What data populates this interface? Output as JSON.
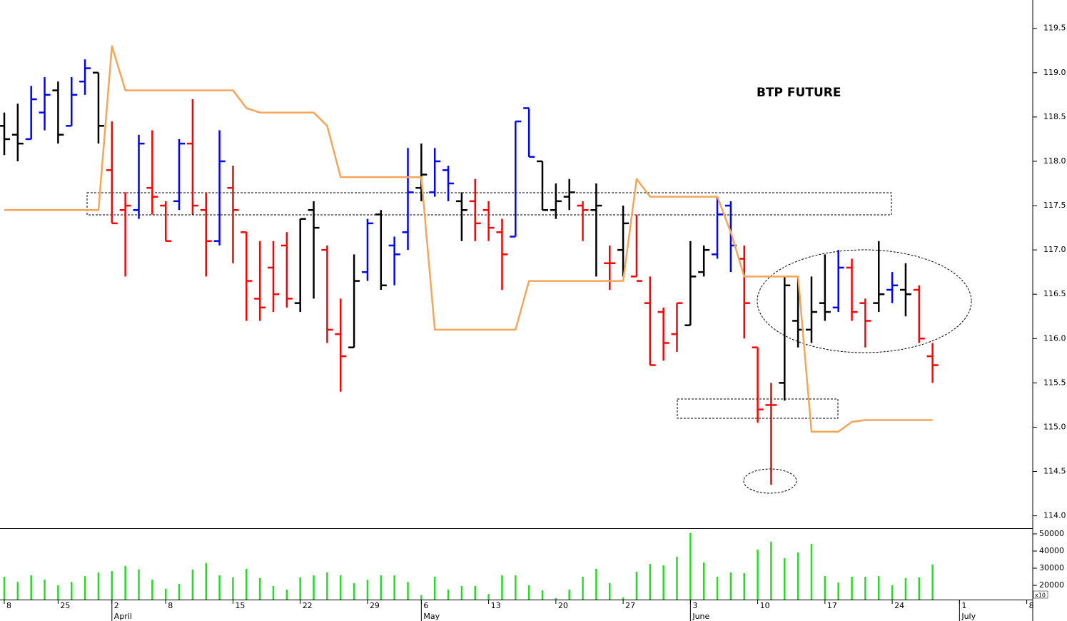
{
  "chart_data": {
    "type": "ohlc",
    "title": "BTP FUTURE",
    "categories": [
      "8",
      null,
      null,
      null,
      "25",
      null,
      null,
      null,
      "2",
      null,
      null,
      null,
      "8",
      null,
      null,
      null,
      null,
      "15",
      null,
      null,
      null,
      null,
      "22",
      null,
      null,
      null,
      null,
      "29",
      null,
      null,
      null,
      "6",
      null,
      null,
      null,
      null,
      "13",
      null,
      null,
      null,
      null,
      "20",
      null,
      null,
      null,
      null,
      "27",
      null,
      null,
      null,
      null,
      "3",
      null,
      null,
      null,
      null,
      "10",
      null,
      null,
      null,
      null,
      "17",
      null,
      null,
      null,
      null,
      "24",
      null,
      null,
      null,
      null,
      "1",
      null,
      null,
      null,
      null,
      "8"
    ],
    "months": [
      null,
      null,
      null,
      null,
      null,
      null,
      null,
      null,
      "April",
      null,
      null,
      null,
      null,
      null,
      null,
      null,
      null,
      null,
      null,
      null,
      null,
      null,
      null,
      null,
      null,
      null,
      null,
      null,
      null,
      null,
      null,
      "May",
      null,
      null,
      null,
      null,
      null,
      null,
      null,
      null,
      null,
      null,
      null,
      null,
      null,
      null,
      null,
      null,
      null,
      null,
      null,
      "June",
      null,
      null,
      null,
      null,
      null,
      null,
      null,
      null,
      null,
      null,
      null,
      null,
      null,
      null,
      null,
      null,
      null,
      null,
      null,
      "July",
      null,
      null,
      null,
      null,
      null
    ],
    "open": [
      118.4,
      118.3,
      118.25,
      118.55,
      118.8,
      118.4,
      118.9,
      119.0,
      117.9,
      117.45,
      117.45,
      117.7,
      117.5,
      117.55,
      118.2,
      117.45,
      117.1,
      117.7,
      117.2,
      116.45,
      116.8,
      117.05,
      116.4,
      117.45,
      117.0,
      116.05,
      115.9,
      116.75,
      117.4,
      117.05,
      117.2,
      117.7,
      117.65,
      117.9,
      117.55,
      117.55,
      117.45,
      117.2,
      117.15,
      118.6,
      118.0,
      117.45,
      117.6,
      117.5,
      117.45,
      116.85,
      117.0,
      116.7,
      116.4,
      116.3,
      116.05,
      116.15,
      116.75,
      116.95,
      117.5,
      116.9,
      115.9,
      115.25,
      115.5,
      116.2,
      116.1,
      116.4,
      116.35,
      116.8,
      116.4,
      116.4,
      116.55,
      116.55,
      116.55,
      115.8,
      null,
      null,
      null,
      null,
      null,
      null,
      null
    ],
    "high": [
      118.55,
      118.65,
      118.85,
      118.95,
      118.9,
      118.95,
      119.15,
      119.0,
      118.45,
      117.65,
      118.3,
      118.35,
      117.55,
      118.25,
      118.7,
      117.65,
      118.35,
      117.95,
      117.2,
      117.1,
      117.1,
      117.2,
      117.35,
      117.55,
      117.05,
      116.45,
      116.95,
      117.35,
      117.45,
      117.15,
      118.15,
      118.2,
      118.15,
      117.95,
      117.65,
      117.8,
      117.55,
      117.35,
      118.45,
      118.6,
      118.0,
      117.75,
      117.8,
      117.55,
      117.75,
      117.05,
      117.5,
      117.4,
      116.7,
      116.35,
      116.4,
      117.1,
      117.05,
      117.6,
      117.55,
      117.05,
      115.9,
      115.5,
      116.7,
      116.7,
      116.7,
      116.95,
      117.0,
      116.9,
      116.45,
      117.1,
      116.75,
      116.85,
      116.6,
      115.95,
      null,
      null,
      null,
      null,
      null,
      null,
      null
    ],
    "low": [
      118.07,
      118.0,
      118.25,
      118.35,
      118.2,
      118.4,
      118.75,
      118.2,
      117.3,
      116.7,
      117.35,
      117.4,
      117.1,
      117.45,
      117.4,
      116.7,
      117.05,
      116.85,
      116.2,
      116.2,
      116.3,
      116.35,
      116.3,
      116.45,
      115.95,
      115.4,
      115.9,
      116.65,
      116.55,
      116.6,
      117.0,
      117.55,
      117.6,
      117.55,
      117.1,
      117.1,
      117.1,
      116.55,
      117.15,
      118.05,
      117.45,
      117.35,
      117.45,
      117.1,
      116.7,
      116.55,
      116.7,
      116.7,
      115.7,
      115.75,
      115.85,
      116.15,
      116.7,
      116.9,
      116.75,
      116.0,
      115.05,
      114.35,
      115.3,
      115.9,
      115.95,
      116.2,
      116.3,
      116.2,
      115.9,
      116.3,
      116.4,
      116.25,
      115.95,
      115.5,
      null,
      null,
      null,
      null,
      null,
      null,
      null
    ],
    "close": [
      118.25,
      118.2,
      118.7,
      118.75,
      118.3,
      118.75,
      119.05,
      118.4,
      117.3,
      117.5,
      118.2,
      117.6,
      117.1,
      118.2,
      117.5,
      117.1,
      118.0,
      117.45,
      116.65,
      116.35,
      116.5,
      116.45,
      117.35,
      117.25,
      116.1,
      115.8,
      116.65,
      117.3,
      116.6,
      116.95,
      117.65,
      117.85,
      118.0,
      117.75,
      117.45,
      117.3,
      117.25,
      116.95,
      118.45,
      118.05,
      117.45,
      117.55,
      117.65,
      117.45,
      117.5,
      116.85,
      117.3,
      116.65,
      115.7,
      115.95,
      116.4,
      116.7,
      117.0,
      117.4,
      117.05,
      116.4,
      115.2,
      115.25,
      116.6,
      116.1,
      116.3,
      116.3,
      116.8,
      116.3,
      116.2,
      116.5,
      116.6,
      116.5,
      116.0,
      115.7,
      null,
      null,
      null,
      null,
      null,
      null,
      null
    ],
    "bar_colors": [
      "#000000",
      "#000000",
      "#0000ff",
      "#0000ff",
      "#000000",
      "#0000ff",
      "#0000ff",
      "#000000",
      "#ff0000",
      "#ff0000",
      "#0000ff",
      "#ff0000",
      "#ff0000",
      "#0000ff",
      "#ff0000",
      "#ff0000",
      "#0000ff",
      "#ff0000",
      "#ff0000",
      "#ff0000",
      "#ff0000",
      "#ff0000",
      "#000000",
      "#000000",
      "#ff0000",
      "#ff0000",
      "#000000",
      "#0000ff",
      "#000000",
      "#0000ff",
      "#0000ff",
      "#000000",
      "#0000ff",
      "#0000ff",
      "#000000",
      "#ff0000",
      "#ff0000",
      "#ff0000",
      "#0000ff",
      "#0000ff",
      "#000000",
      "#000000",
      "#000000",
      "#ff0000",
      "#000000",
      "#ff0000",
      "#000000",
      "#ff0000",
      "#ff0000",
      "#ff0000",
      "#ff0000",
      "#000000",
      "#000000",
      "#0000ff",
      "#0000ff",
      "#ff0000",
      "#ff0000",
      "#ff0000",
      "#000000",
      "#000000",
      "#000000",
      "#000000",
      "#0000ff",
      "#ff0000",
      "#ff0000",
      "#000000",
      "#0000ff",
      "#000000",
      "#ff0000",
      "#ff0000",
      null,
      null,
      null,
      null,
      null,
      null,
      null
    ],
    "ylim": [
      113.86,
      119.82
    ],
    "yticks": [
      {
        "value": 114,
        "label": "114.0"
      },
      114.5,
      {
        "value": 115,
        "label": "115.0"
      },
      115.5,
      {
        "value": 116,
        "label": "116.0"
      },
      116.5,
      {
        "value": 117,
        "label": "117.0"
      },
      117.5,
      {
        "value": 118,
        "label": "118.0"
      },
      118.5,
      {
        "value": 119,
        "label": "119.0"
      },
      119.5
    ],
    "line": {
      "color": "#f5a55a",
      "values": [
        117.45,
        117.45,
        117.45,
        117.45,
        117.45,
        117.45,
        117.45,
        117.45,
        119.3,
        118.8,
        118.8,
        118.8,
        118.8,
        118.8,
        118.8,
        118.8,
        118.8,
        118.8,
        118.6,
        118.55,
        118.55,
        118.55,
        118.55,
        118.55,
        118.4,
        117.82,
        117.82,
        117.82,
        117.82,
        117.82,
        117.82,
        117.82,
        116.1,
        116.1,
        116.1,
        116.1,
        116.1,
        116.1,
        116.1,
        116.65,
        116.65,
        116.65,
        116.65,
        116.65,
        116.65,
        116.65,
        116.65,
        117.8,
        117.6,
        117.6,
        117.6,
        117.6,
        117.6,
        117.6,
        117.2,
        116.7,
        116.7,
        116.7,
        116.7,
        116.7,
        114.95,
        114.95,
        114.95,
        115.06,
        115.08,
        115.08,
        115.08,
        115.08,
        115.08,
        115.08,
        null,
        null,
        null,
        null,
        null,
        null,
        null
      ]
    },
    "volume": {
      "color": "#22dd22",
      "values": [
        25000,
        22000,
        25800,
        23300,
        20000,
        22000,
        25400,
        27500,
        28300,
        31250,
        29200,
        23300,
        18000,
        20800,
        29200,
        33000,
        25800,
        24600,
        29600,
        24200,
        19600,
        17500,
        24600,
        25800,
        27500,
        25800,
        21250,
        23300,
        25800,
        25800,
        22000,
        14200,
        25000,
        17500,
        19600,
        19600,
        15000,
        25800,
        25800,
        20000,
        17100,
        12500,
        17500,
        25000,
        29600,
        21250,
        12900,
        27900,
        32500,
        31700,
        36700,
        50400,
        33300,
        25000,
        27500,
        27100,
        40800,
        45400,
        35800,
        39200,
        44200,
        25400,
        21700,
        25000,
        25000,
        25400,
        20000,
        24200,
        24600,
        32100,
        null,
        null,
        null,
        null,
        null,
        null,
        null
      ],
      "ylim": [
        11700,
        52900
      ],
      "yticks": [
        20000,
        30000,
        40000,
        50000
      ],
      "multiplier_label": "x10"
    }
  }
}
